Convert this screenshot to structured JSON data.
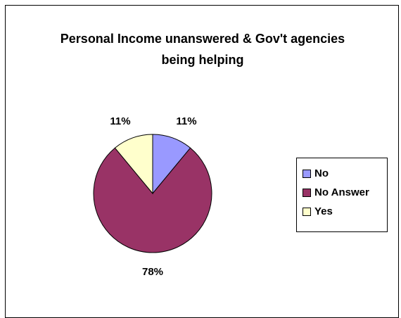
{
  "chart_data": {
    "type": "pie",
    "title": "Personal Income unanswered & Gov't agencies being helping",
    "categories": [
      "No",
      "No Answer",
      "Yes"
    ],
    "values": [
      11,
      78,
      11
    ],
    "data_labels": [
      "11%",
      "78%",
      "11%"
    ],
    "colors": [
      "#9999ff",
      "#993366",
      "#ffffcc"
    ],
    "legend_position": "right"
  }
}
